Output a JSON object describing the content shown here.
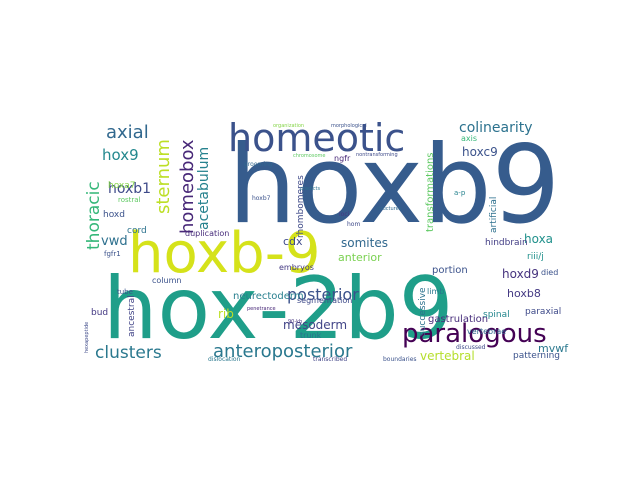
{
  "words": [
    {
      "text": "hoxb9",
      "color": "#365c8d"
    },
    {
      "text": "hox-2b9",
      "color": "#1f9e89"
    },
    {
      "text": "hoxb-9",
      "color": "#d5e21a"
    },
    {
      "text": "homeotic",
      "color": "#3b528b"
    },
    {
      "text": "paralogous",
      "color": "#440154"
    },
    {
      "text": "anteroposterior",
      "color": "#2a788e"
    },
    {
      "text": "clusters",
      "color": "#2a788e"
    },
    {
      "text": "homeobox",
      "color": "#482878"
    },
    {
      "text": "thoracic",
      "color": "#35b779"
    },
    {
      "text": "sternum",
      "color": "#bddf26"
    },
    {
      "text": "axial",
      "color": "#31688e"
    },
    {
      "text": "posterior",
      "color": "#3b528b"
    },
    {
      "text": "colinearity",
      "color": "#2c728e"
    },
    {
      "text": "hox9",
      "color": "#23888e"
    },
    {
      "text": "acetabulum",
      "color": "#26828e"
    },
    {
      "text": "hoxb1",
      "color": "#3e4a89"
    },
    {
      "text": "hoxa",
      "color": "#21918c"
    },
    {
      "text": "vwd",
      "color": "#2d708e"
    },
    {
      "text": "hoxc9",
      "color": "#3b528b"
    },
    {
      "text": "somites",
      "color": "#31688e"
    },
    {
      "text": "hoxd9",
      "color": "#46337e"
    },
    {
      "text": "mesoderm",
      "color": "#414487"
    },
    {
      "text": "vertebral",
      "color": "#b5de2b"
    },
    {
      "text": "mvwf",
      "color": "#2a788e"
    },
    {
      "text": "hoxb8",
      "color": "#443983"
    },
    {
      "text": "anterior",
      "color": "#7ad151"
    },
    {
      "text": "cdx",
      "color": "#3e4a89"
    },
    {
      "text": "gastrulation",
      "color": "#472d7b"
    },
    {
      "text": "neurectoderm",
      "color": "#277f8e"
    },
    {
      "text": "transformations",
      "color": "#5ec962"
    },
    {
      "text": "portion",
      "color": "#3b528b"
    },
    {
      "text": "successive",
      "color": "#2c728e"
    },
    {
      "text": "spinal",
      "color": "#24878e"
    },
    {
      "text": "paraxial",
      "color": "#3e4a89"
    },
    {
      "text": "patterning",
      "color": "#3b528b"
    },
    {
      "text": "riii/j",
      "color": "#21918c"
    },
    {
      "text": "hindbrain",
      "color": "#433e85"
    },
    {
      "text": "artificial",
      "color": "#2d708e"
    },
    {
      "text": "rhombomeres",
      "color": "#3e4a89"
    },
    {
      "text": "ancestral",
      "color": "#414487"
    },
    {
      "text": "cord",
      "color": "#2c728e"
    },
    {
      "text": "hoxd",
      "color": "#3b528b"
    },
    {
      "text": "hoxa7",
      "color": "#86d549"
    },
    {
      "text": "duplication",
      "color": "#472c7a"
    },
    {
      "text": "embryos",
      "color": "#443983"
    },
    {
      "text": "segmentation",
      "color": "#3e4a89"
    },
    {
      "text": "column",
      "color": "#3b528b"
    },
    {
      "text": "vertebrae",
      "color": "#31688e"
    },
    {
      "text": "trunk",
      "color": "#2c728e"
    },
    {
      "text": "died",
      "color": "#3b528b"
    },
    {
      "text": "limb",
      "color": "#2a788e"
    },
    {
      "text": "bud",
      "color": "#443983"
    },
    {
      "text": "axis",
      "color": "#35b779"
    },
    {
      "text": "ngfr",
      "color": "#482878"
    },
    {
      "text": "rostral",
      "color": "#5ec962"
    },
    {
      "text": "fgfr1",
      "color": "#3b528b"
    },
    {
      "text": "tube",
      "color": "#3b528b"
    },
    {
      "text": "a-p",
      "color": "#26828e"
    },
    {
      "text": "discussed",
      "color": "#3e4a89"
    },
    {
      "text": "dislocation",
      "color": "#2a788e"
    },
    {
      "text": "boundaries",
      "color": "#3b528b"
    },
    {
      "text": "hom",
      "color": "#3e4a89"
    },
    {
      "text": "transcribed",
      "color": "#414487"
    },
    {
      "text": "hoxb7",
      "color": "#3b528b"
    },
    {
      "text": "loci",
      "color": "#443983"
    },
    {
      "text": "grooming",
      "color": "#31688e"
    },
    {
      "text": "chromosome",
      "color": "#5ec962"
    },
    {
      "text": "predicts",
      "color": "#2c728e"
    },
    {
      "text": "nontransforming",
      "color": "#3e4a89"
    },
    {
      "text": "organization",
      "color": "#86d549"
    },
    {
      "text": "morphological",
      "color": "#3b528b"
    },
    {
      "text": "structures",
      "color": "#31688e"
    },
    {
      "text": "hexapeptide",
      "color": "#3e4a89"
    },
    {
      "text": "penetrance",
      "color": "#482878"
    },
    {
      "text": "90-kb",
      "color": "#46337e"
    },
    {
      "text": "rib",
      "color": "#bddf26"
    }
  ]
}
